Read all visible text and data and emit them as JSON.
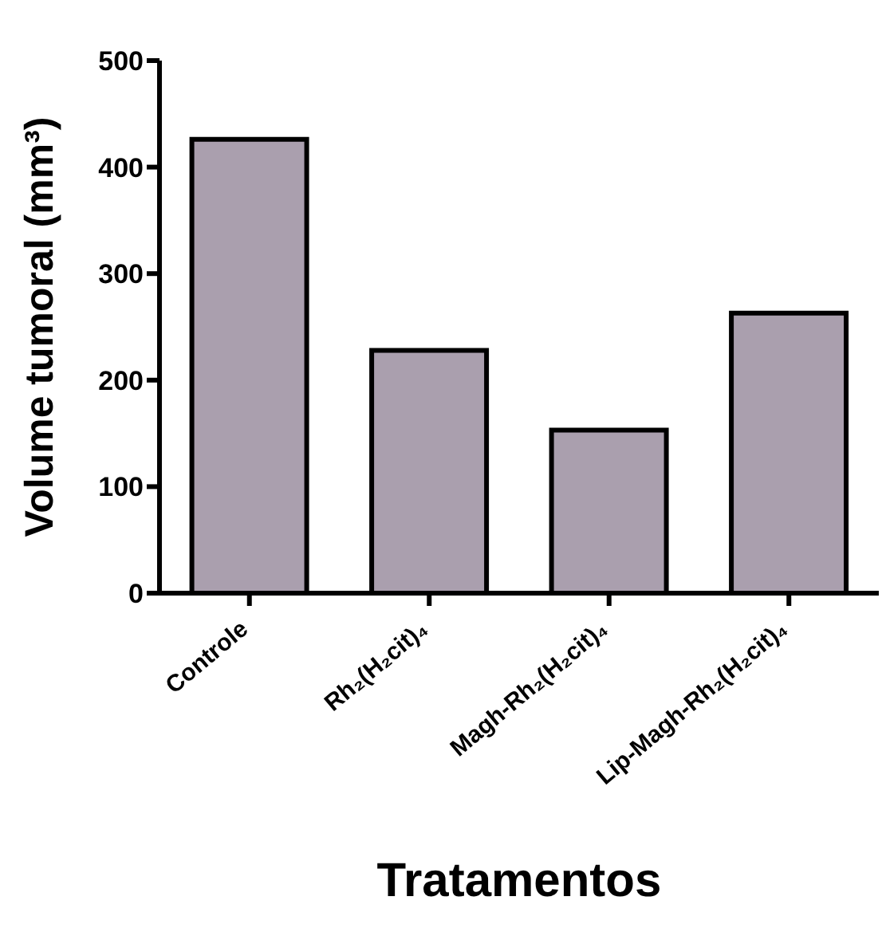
{
  "chart_data": {
    "type": "bar",
    "xlabel": "Tratamentos",
    "ylabel": "Volume tumoral (mm³)",
    "categories": [
      "Controle",
      "Rh₂(H₂cit)₄",
      "Magh-Rh₂(H₂cit)₄",
      "Lip-Magh-Rh₂(H₂cit)₄"
    ],
    "values": [
      426,
      228,
      153,
      263
    ],
    "color": "#aa9fae",
    "ylim": [
      0,
      500
    ],
    "yticks": [
      0,
      100,
      200,
      300,
      400,
      500
    ],
    "grid": false,
    "legend": false
  }
}
